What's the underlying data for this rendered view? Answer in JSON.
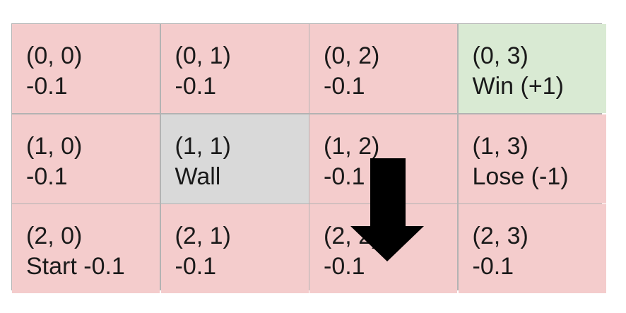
{
  "grid": {
    "rows": [
      [
        {
          "coord": "(0, 0)",
          "label": "-0.1",
          "kind": "normal"
        },
        {
          "coord": "(0, 1)",
          "label": "-0.1",
          "kind": "normal"
        },
        {
          "coord": "(0, 2)",
          "label": "-0.1",
          "kind": "normal"
        },
        {
          "coord": "(0, 3)",
          "label": "Win (+1)",
          "kind": "win"
        }
      ],
      [
        {
          "coord": "(1, 0)",
          "label": "-0.1",
          "kind": "normal"
        },
        {
          "coord": "(1, 1)",
          "label": "Wall",
          "kind": "wall"
        },
        {
          "coord": "(1, 2)",
          "label": "-0.1",
          "kind": "normal"
        },
        {
          "coord": "(1, 3)",
          "label": "Lose (-1)",
          "kind": "normal"
        }
      ],
      [
        {
          "coord": "(2, 0)",
          "label": "Start -0.1",
          "kind": "normal"
        },
        {
          "coord": "(2, 1)",
          "label": "-0.1",
          "kind": "normal"
        },
        {
          "coord": "(2, 2)",
          "label": "-0.1",
          "kind": "normal"
        },
        {
          "coord": "(2, 3)",
          "label": "-0.1",
          "kind": "normal"
        }
      ]
    ]
  },
  "colors": {
    "normal": "#f4cccc",
    "win": "#d9ead3",
    "wall": "#d9d9d9",
    "border": "#b3b3b3",
    "arrow": "#000000"
  },
  "arrow": {
    "icon": "down-arrow-icon",
    "direction": "down"
  }
}
